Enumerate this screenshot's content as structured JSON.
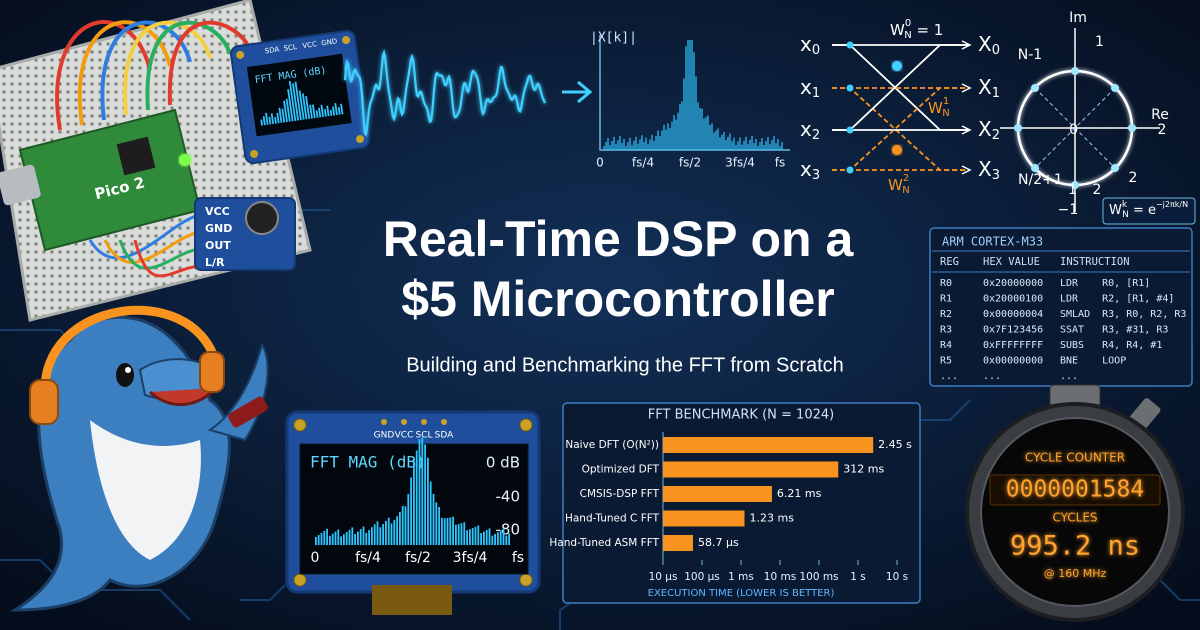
{
  "header": {
    "title_line1": "Real-Time DSP on a",
    "title_line2": "$5 Microcontroller",
    "subtitle": "Building and Benchmarking the FFT from Scratch"
  },
  "breadboard": {
    "board_label": "Pico 2",
    "mic_pins": [
      "VCC",
      "GND",
      "OUT",
      "L/R"
    ],
    "oled_pins": [
      "SDA",
      "SCL",
      "VCC",
      "GND"
    ],
    "oled_title": "FFT MAG (dB)"
  },
  "spectrum": {
    "y_label": "|X[k]|",
    "x_labels": [
      "0",
      "fs/4",
      "fs/2",
      "3fs/4",
      "fs"
    ]
  },
  "butterfly": {
    "inputs": [
      {
        "base": "x",
        "sub": "0"
      },
      {
        "base": "x",
        "sub": "1"
      },
      {
        "base": "x",
        "sub": "2"
      },
      {
        "base": "x",
        "sub": "3"
      }
    ],
    "outputs": [
      {
        "base": "X",
        "sub": "0"
      },
      {
        "base": "X",
        "sub": "1"
      },
      {
        "base": "X",
        "sub": "2"
      },
      {
        "base": "X",
        "sub": "3"
      }
    ],
    "twiddles": [
      {
        "base": "W",
        "sub": "N",
        "sup": "0",
        "tail": " = 1"
      },
      {
        "base": "W",
        "sub": "N",
        "sup": "1",
        "tail": ""
      },
      {
        "base": "W",
        "sub": "N",
        "sup": "2",
        "tail": ""
      }
    ]
  },
  "unit_circle": {
    "labels": [
      "Im",
      "1",
      "N-1",
      "Re",
      "2",
      "0",
      "N/2+1",
      "1",
      "2",
      "2",
      "−1"
    ],
    "formula": {
      "base": "W",
      "sub": "N",
      "sup": "k",
      "eq": " = e",
      "exp": "−j2πk/N"
    }
  },
  "registers": {
    "title": "ARM CORTEX-M33",
    "columns": [
      "REG",
      "HEX VALUE",
      "INSTRUCTION"
    ],
    "rows": [
      [
        "R0",
        "0x20000000",
        "LDR    R0, [R1]"
      ],
      [
        "R1",
        "0x20000100",
        "LDR    R2, [R1, #4]"
      ],
      [
        "R2",
        "0x00000004",
        "SMLAD  R3, R0, R2, R3"
      ],
      [
        "R3",
        "0x7F123456",
        "SSAT   R3, #31, R3"
      ],
      [
        "R4",
        "0xFFFFFFFF",
        "SUBS   R4, R4, #1"
      ],
      [
        "R5",
        "0x00000000",
        "BNE    LOOP"
      ],
      [
        "...",
        "...",
        "..."
      ]
    ]
  },
  "oled": {
    "pins": [
      "GND",
      "VCC",
      "SCL",
      "SDA"
    ],
    "title": "FFT MAG (dB)",
    "db_labels": [
      "0 dB",
      "-40",
      "-80"
    ],
    "x_labels": [
      "0",
      "fs/4",
      "fs/2",
      "3fs/4",
      "fs"
    ]
  },
  "chart_data": {
    "type": "bar",
    "orientation": "horizontal",
    "title": "FFT BENCHMARK (N = 1024)",
    "x_label": "EXECUTION TIME (LOWER IS BETTER)",
    "categories": [
      "Naive DFT (O(N²))",
      "Optimized DFT",
      "CMSIS-DSP FFT",
      "Hand-Tuned C FFT",
      "Hand-Tuned ASM FFT"
    ],
    "values": [
      2.45,
      0.312,
      0.00621,
      0.00123,
      5.87e-05
    ],
    "value_labels": [
      "2.45 s",
      "312 ms",
      "6.21 ms",
      "1.23 ms",
      "58.7 µs"
    ],
    "color": "#f7931e",
    "xscale": "log",
    "xlim": [
      1e-05,
      10
    ],
    "xticks": [
      {
        "value": 1e-05,
        "label": "10 µs"
      },
      {
        "value": 0.0001,
        "label": "100 µs"
      },
      {
        "value": 0.001,
        "label": "1 ms"
      },
      {
        "value": 0.01,
        "label": "10 ms"
      },
      {
        "value": 0.1,
        "label": "100 ms"
      },
      {
        "value": 1,
        "label": "1 s"
      },
      {
        "value": 10,
        "label": "10 s"
      }
    ]
  },
  "cycle_counter": {
    "title": "CYCLE COUNTER",
    "count": "0000001584",
    "count_unit": "CYCLES",
    "time": "995.2 ns",
    "clock": "@ 160 MHz"
  }
}
